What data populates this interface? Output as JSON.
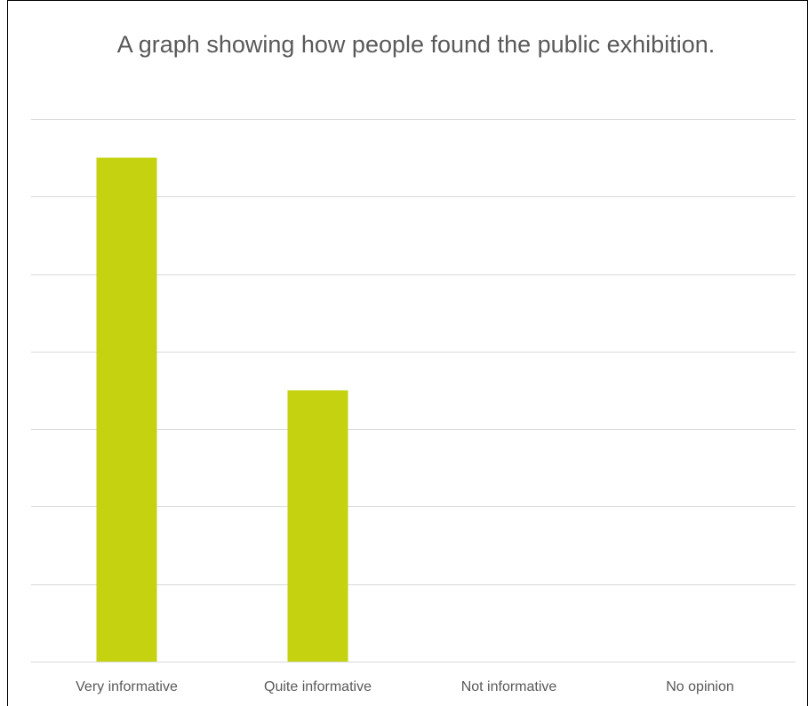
{
  "chart_data": {
    "type": "bar",
    "title": "A graph showing how people found the public exhibition.",
    "categories": [
      "Very informative",
      "Quite informative",
      "Not informative",
      "No opinion"
    ],
    "series": [
      {
        "values": [
          13,
          7,
          0,
          0
        ]
      }
    ],
    "ylim": [
      0,
      14
    ],
    "y_tick_step": 2,
    "grid": true,
    "y_tick_labels_visible": false,
    "legend": "none",
    "colors": {
      "bar": "#c4d20f",
      "grid": "#d9d9d9",
      "axis": "#d9d9d9",
      "text": "#595959"
    }
  }
}
